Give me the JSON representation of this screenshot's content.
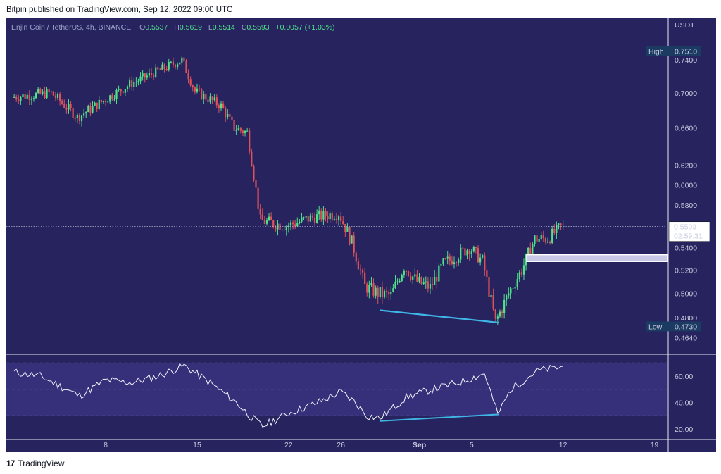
{
  "header": {
    "published": "Bitpin published on TradingView.com, Sep 12, 2022 09:00 UTC"
  },
  "legend": {
    "symbol": "Enjin Coin / TetherUS, 4h, BINANCE",
    "open_key": "O",
    "open": "0.5537",
    "high_key": "H",
    "high": "0.5619",
    "low_key": "L",
    "low": "0.5514",
    "close_key": "C",
    "close": "0.5593",
    "change": "+0.0057 (+1.03%)"
  },
  "footer": {
    "brand": "TradingView",
    "mark": "17"
  },
  "colors": {
    "background": "#26235e",
    "bull": "#4fe38a",
    "bear": "#e0515a",
    "divergence": "#3fb6e6",
    "zone": "#c9c8e6",
    "rsi_band": "#362f7a"
  },
  "chart_data": [
    {
      "type": "candlestick",
      "currency": "USDT",
      "y_ticks": [
        "0.7400",
        "0.7000",
        "0.6600",
        "0.6200",
        "0.6000",
        "0.5800",
        "0.5400",
        "0.5200",
        "0.5000",
        "0.4800",
        "0.4640"
      ],
      "x_ticks": [
        "8",
        "15",
        "22",
        "26",
        "Sep",
        "5",
        "12",
        "19"
      ],
      "ylim": [
        0.459,
        0.758
      ],
      "last_price": "0.5593",
      "countdown": "02:59:31",
      "high_label": "High",
      "high_value": "0.7510",
      "low_label": "Low",
      "low_value": "0.4730",
      "key_points": [
        {
          "date": "Aug 1",
          "price": 0.695
        },
        {
          "date": "Aug 4",
          "price": 0.7
        },
        {
          "date": "Aug 6",
          "price": 0.672
        },
        {
          "date": "Aug 10",
          "price": 0.71
        },
        {
          "date": "Aug 14",
          "price": 0.74
        },
        {
          "date": "Aug 15",
          "price": 0.702
        },
        {
          "date": "Aug 17",
          "price": 0.685
        },
        {
          "date": "Aug 18",
          "price": 0.66
        },
        {
          "date": "Aug 19",
          "price": 0.655
        },
        {
          "date": "Aug 20",
          "price": 0.565
        },
        {
          "date": "Aug 22",
          "price": 0.56
        },
        {
          "date": "Aug 24",
          "price": 0.568
        },
        {
          "date": "Aug 26",
          "price": 0.572
        },
        {
          "date": "Aug 27",
          "price": 0.545
        },
        {
          "date": "Aug 28",
          "price": 0.506
        },
        {
          "date": "Aug 29",
          "price": 0.5
        },
        {
          "date": "Aug 30",
          "price": 0.498
        },
        {
          "date": "Aug 31",
          "price": 0.523
        },
        {
          "date": "Sep 1",
          "price": 0.51
        },
        {
          "date": "Sep 2",
          "price": 0.505
        },
        {
          "date": "Sep 3",
          "price": 0.525
        },
        {
          "date": "Sep 5",
          "price": 0.54
        },
        {
          "date": "Sep 6",
          "price": 0.528
        },
        {
          "date": "Sep 7",
          "price": 0.476
        },
        {
          "date": "Sep 8",
          "price": 0.5
        },
        {
          "date": "Sep 9",
          "price": 0.52
        },
        {
          "date": "Sep 10",
          "price": 0.548
        },
        {
          "date": "Sep 11",
          "price": 0.548
        },
        {
          "date": "Sep 12",
          "price": 0.559
        }
      ],
      "support_zone": {
        "from_date": "Sep 9",
        "price_low": 0.5275,
        "price_high": 0.5335
      },
      "divergence_line": {
        "from": {
          "date": "Aug 29",
          "price": 0.486
        },
        "to": {
          "date": "Sep 7",
          "price": 0.476
        }
      }
    },
    {
      "type": "line",
      "indicator": "RSI",
      "y_ticks": [
        "60.00",
        "40.00",
        "20.00"
      ],
      "ylim": [
        15,
        75
      ],
      "bands": [
        30,
        50,
        70
      ],
      "x": [
        "Aug 1",
        "Aug 3",
        "Aug 6",
        "Aug 8",
        "Aug 10",
        "Aug 12",
        "Aug 14",
        "Aug 16",
        "Aug 18",
        "Aug 19",
        "Aug 20",
        "Aug 21",
        "Aug 22",
        "Aug 24",
        "Aug 26",
        "Aug 27",
        "Aug 28",
        "Aug 29",
        "Aug 31",
        "Sep 2",
        "Sep 4",
        "Sep 6",
        "Sep 7",
        "Sep 8",
        "Sep 10",
        "Sep 12"
      ],
      "y": [
        63,
        60,
        45,
        57,
        55,
        60,
        68,
        55,
        40,
        30,
        22,
        27,
        32,
        39,
        48,
        41,
        30,
        28,
        44,
        50,
        55,
        62,
        31,
        50,
        64,
        67
      ],
      "divergence_line": {
        "from": {
          "date": "Aug 29",
          "value": 26
        },
        "to": {
          "date": "Sep 7",
          "value": 31
        }
      }
    }
  ]
}
